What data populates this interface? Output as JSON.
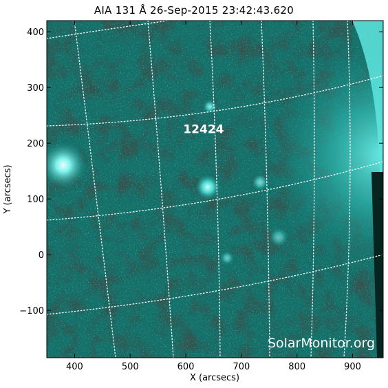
{
  "title": "AIA 131 Å 26-Sep-2015 23:42:43.620",
  "xaxis": {
    "label": "X (arcsecs)",
    "range": [
      350,
      955
    ],
    "ticks": [
      400,
      500,
      600,
      700,
      800,
      900
    ]
  },
  "yaxis": {
    "label": "Y (arcsecs)",
    "range": [
      -185,
      420
    ],
    "ticks": [
      -100,
      0,
      100,
      200,
      300,
      400
    ]
  },
  "active_region": {
    "number": "12424",
    "x_arcsec": 632,
    "y_arcsec": 218
  },
  "watermark": "SolarMonitor.org",
  "colors": {
    "image_dark": "#0b2a26",
    "image_mid": "#127a74",
    "image_bright": "#4fe3db",
    "grid": "#ffffff"
  },
  "grid": true
}
